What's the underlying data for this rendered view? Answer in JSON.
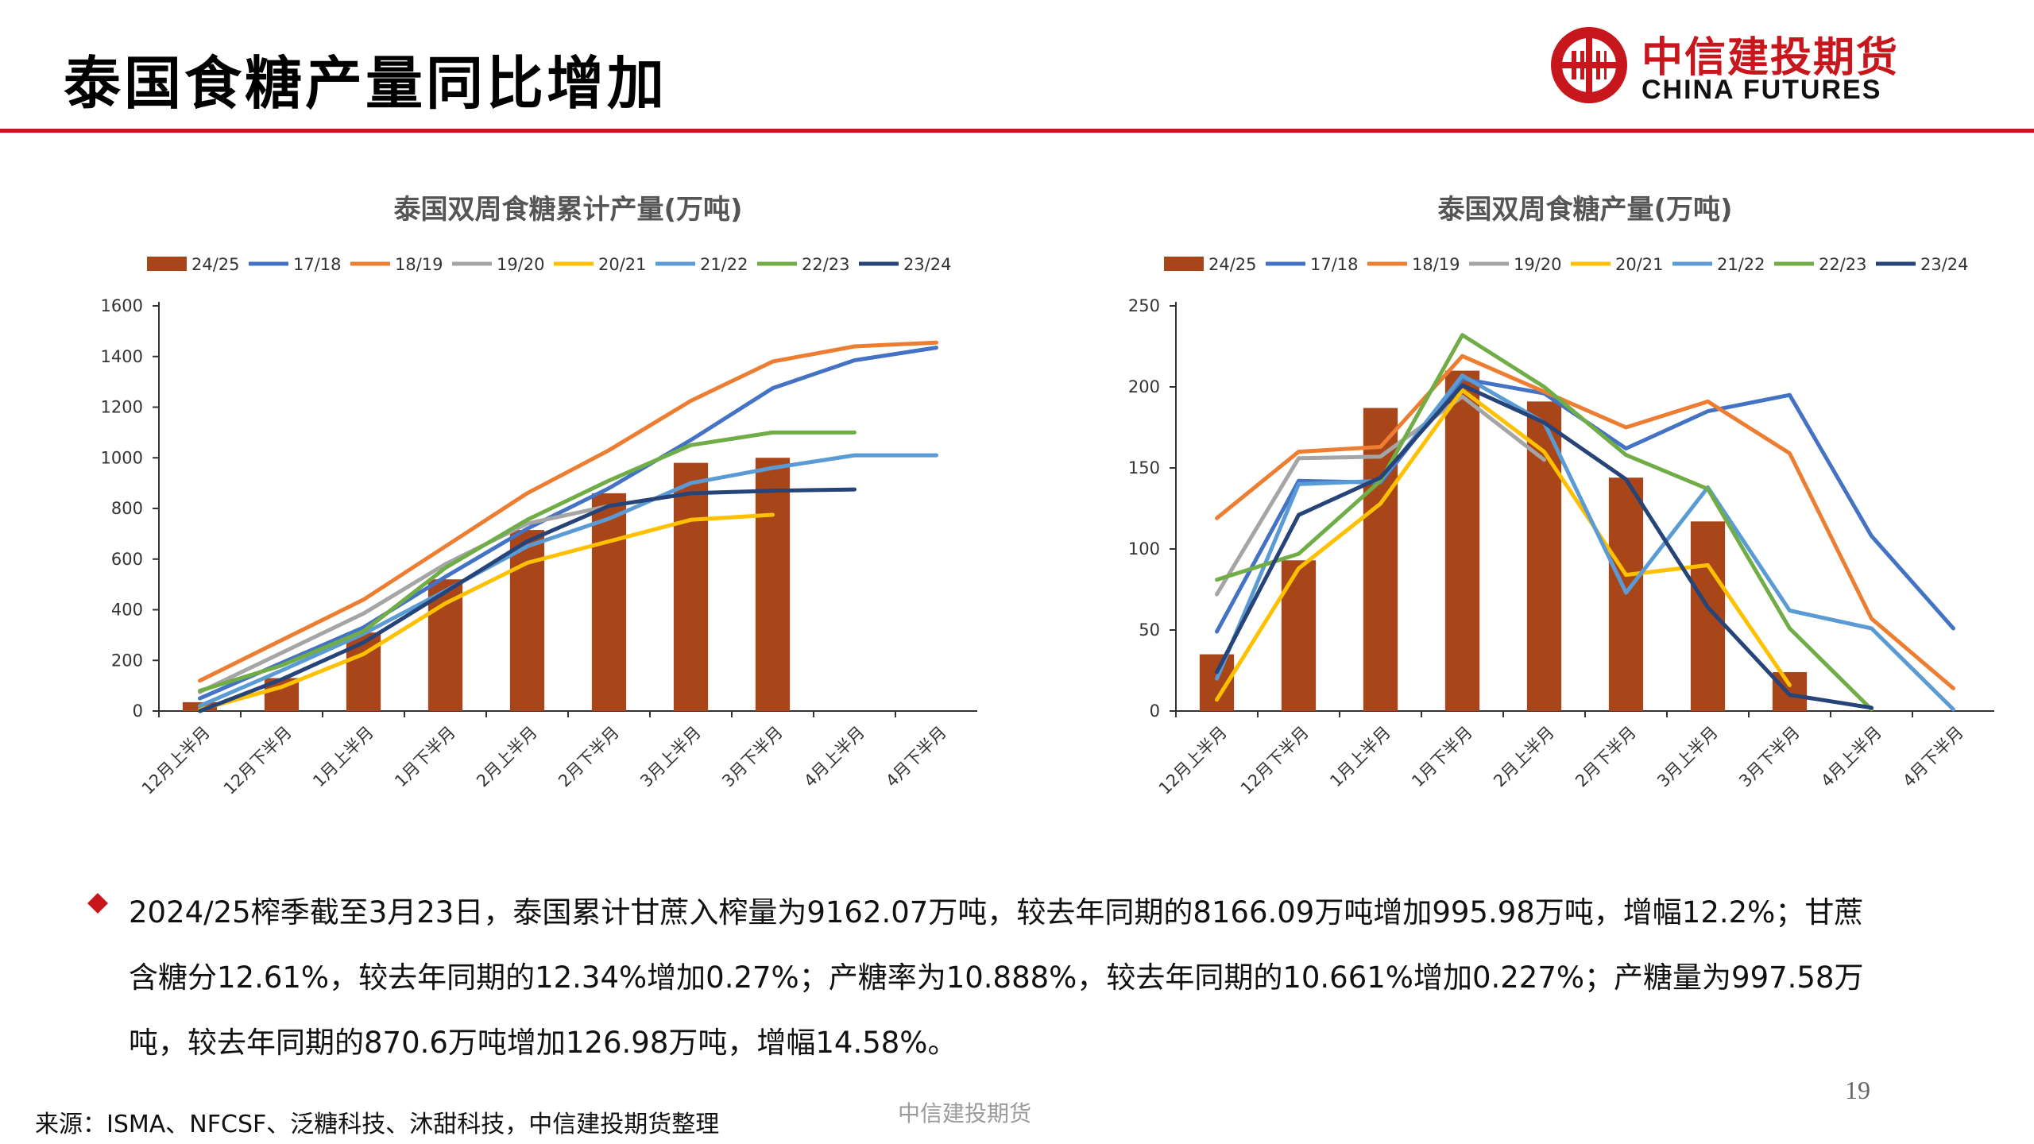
{
  "header": {
    "title": "泰国食糖产量同比增加",
    "logo_cn": "中信建投期货",
    "logo_en": "CHINA FUTURES"
  },
  "colors": {
    "accent": "#c8161d",
    "bar": "#a8461a"
  },
  "chart_data": [
    {
      "type": "bar+line",
      "title": "泰国双周食糖累计产量(万吨)",
      "categories": [
        "12月上半月",
        "12月下半月",
        "1月上半月",
        "1月下半月",
        "2月上半月",
        "2月下半月",
        "3月上半月",
        "3月下半月",
        "4月上半月",
        "4月下半月"
      ],
      "ylim": [
        0,
        1600
      ],
      "yticks": [
        0,
        200,
        400,
        600,
        800,
        1000,
        1200,
        1400,
        1600
      ],
      "series": [
        {
          "name": "24/25",
          "kind": "bar",
          "color": "#a8461a",
          "values": [
            35,
            130,
            310,
            520,
            715,
            860,
            980,
            1000,
            null,
            null
          ]
        },
        {
          "name": "17/18",
          "kind": "line",
          "color": "#4472c4",
          "values": [
            50,
            190,
            330,
            530,
            720,
            880,
            1070,
            1275,
            1385,
            1435
          ]
        },
        {
          "name": "18/19",
          "kind": "line",
          "color": "#ed7d31",
          "values": [
            120,
            280,
            440,
            650,
            860,
            1030,
            1225,
            1380,
            1440,
            1455
          ]
        },
        {
          "name": "19/20",
          "kind": "line",
          "color": "#a5a5a5",
          "values": [
            75,
            230,
            385,
            580,
            740,
            810,
            null,
            null,
            null,
            null
          ]
        },
        {
          "name": "20/21",
          "kind": "line",
          "color": "#ffc000",
          "values": [
            5,
            95,
            225,
            425,
            585,
            670,
            755,
            775,
            null,
            null
          ]
        },
        {
          "name": "21/22",
          "kind": "line",
          "color": "#5b9bd5",
          "values": [
            20,
            160,
            305,
            475,
            650,
            760,
            900,
            960,
            1010,
            1010
          ]
        },
        {
          "name": "22/23",
          "kind": "line",
          "color": "#70ad47",
          "values": [
            80,
            180,
            315,
            565,
            755,
            910,
            1050,
            1100,
            1100,
            null
          ]
        },
        {
          "name": "23/24",
          "kind": "line",
          "color": "#264478",
          "values": [
            0,
            125,
            270,
            470,
            670,
            810,
            860,
            870,
            875,
            null
          ]
        }
      ]
    },
    {
      "type": "bar+line",
      "title": "泰国双周食糖产量(万吨)",
      "categories": [
        "12月上半月",
        "12月下半月",
        "1月上半月",
        "1月下半月",
        "2月上半月",
        "2月下半月",
        "3月上半月",
        "3月下半月",
        "4月上半月",
        "4月下半月"
      ],
      "ylim": [
        0,
        250
      ],
      "yticks": [
        0,
        50,
        100,
        150,
        200,
        250
      ],
      "series": [
        {
          "name": "24/25",
          "kind": "bar",
          "color": "#a8461a",
          "values": [
            35,
            93,
            187,
            210,
            191,
            144,
            117,
            24,
            null,
            null
          ]
        },
        {
          "name": "17/18",
          "kind": "line",
          "color": "#4472c4",
          "values": [
            49,
            142,
            141,
            205,
            196,
            162,
            185,
            195,
            108,
            51
          ]
        },
        {
          "name": "18/19",
          "kind": "line",
          "color": "#ed7d31",
          "values": [
            119,
            160,
            163,
            219,
            197,
            175,
            191,
            159,
            57,
            14
          ]
        },
        {
          "name": "19/20",
          "kind": "line",
          "color": "#a5a5a5",
          "values": [
            72,
            156,
            157,
            194,
            155,
            null,
            null,
            null,
            null,
            null
          ]
        },
        {
          "name": "20/21",
          "kind": "line",
          "color": "#ffc000",
          "values": [
            7,
            88,
            128,
            198,
            160,
            84,
            90,
            16,
            null,
            null
          ]
        },
        {
          "name": "21/22",
          "kind": "line",
          "color": "#5b9bd5",
          "values": [
            20,
            140,
            142,
            207,
            178,
            73,
            138,
            62,
            51,
            1
          ]
        },
        {
          "name": "22/23",
          "kind": "line",
          "color": "#70ad47",
          "values": [
            81,
            97,
            142,
            232,
            200,
            158,
            137,
            51,
            1,
            null
          ]
        },
        {
          "name": "23/24",
          "kind": "line",
          "color": "#264478",
          "values": [
            24,
            121,
            144,
            201,
            178,
            143,
            64,
            10,
            2,
            null
          ]
        }
      ]
    }
  ],
  "body": {
    "paragraph": "2024/25榨季截至3月23日，泰国累计甘蔗入榨量为9162.07万吨，较去年同期的8166.09万吨增加995.98万吨，增幅12.2%；甘蔗含糖分12.61%，较去年同期的12.34%增加0.27%；产糖率为10.888%，较去年同期的10.661%增加0.227%；产糖量为997.58万吨，较去年同期的870.6万吨增加126.98万吨，增幅14.58%。"
  },
  "footer": {
    "source": "来源：ISMA、NFCSF、泛糖科技、沐甜科技，中信建投期货整理",
    "center": "中信建投期货",
    "page": "19"
  }
}
